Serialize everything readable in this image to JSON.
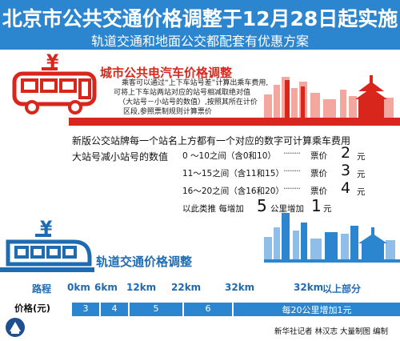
{
  "header": {
    "title": "北京市公共交通价格调整于12月28日起实施",
    "subtitle": "轨道交通和地面公交都配套有优惠方案"
  },
  "bus_section": {
    "title": "城市公共电汽车价格调整",
    "description": [
      "乘客可以通过“上下车站号差”计算出乘车费用,",
      "可将上下车站两站对应的站号相减取绝对值",
      "（大站号－小站号的数值）,按照其所在计价",
      "区段,参照票制规则计算票价"
    ],
    "intro_line": "新版公交站牌每一个站名上方都有一个对应的数字可计算乘车费用",
    "intro_line2": "大站号减小站号的数值",
    "fare_rows": [
      {
        "range": "0 ～10之间（含0和10）",
        "price_label": "票价",
        "price": "2",
        "unit": "元"
      },
      {
        "range": "11～15之间（含11和15）",
        "price_label": "票价",
        "price": "3",
        "unit": "元"
      },
      {
        "range": "16～20之间（含16和20）",
        "price_label": "票价",
        "price": "4",
        "unit": "元"
      }
    ],
    "extrapolate": {
      "prefix": "以此类推  每增加",
      "num1": "5",
      "mid": "公里增加",
      "num2": "1",
      "unit": "元"
    }
  },
  "rail_section": {
    "title": "轨道交通价格调整",
    "distance_label": "路程",
    "price_label": "价格(元)",
    "km_marks": [
      "0km",
      "6km",
      "12km",
      "22km",
      "32km",
      "32km"
    ],
    "beyond_label": "以上部分",
    "prices": [
      "3",
      "4",
      "5",
      "6"
    ],
    "beyond_price": "每20公里增加1元"
  },
  "credit": "新华社记者  林汉志  大量制图  编制",
  "colors": {
    "header_blue": "#2c86cf",
    "accent_red": "#d9261c",
    "rail_blue": "#1f6bb2"
  },
  "icons": [
    "bus-icon",
    "train-icon",
    "yuan-sign-icon",
    "city-skyline-red",
    "city-skyline-blue",
    "xinhua-logo-icon"
  ]
}
